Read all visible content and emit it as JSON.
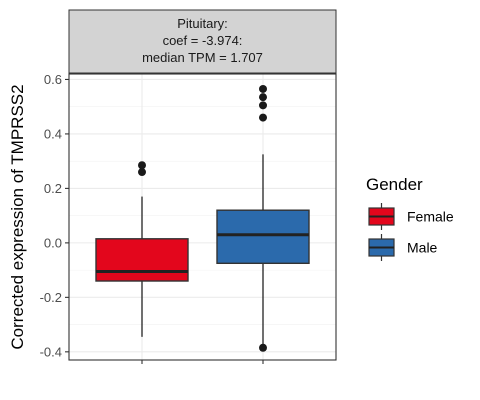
{
  "chart_data": {
    "type": "boxplot",
    "facet": {
      "title_lines": [
        "Pituitary:",
        "coef = -3.974:",
        "median TPM = 1.707"
      ]
    },
    "ylabel": "Corrected expression of TMPRSS2",
    "xlabel": "",
    "ylim": [
      -0.43,
      0.62
    ],
    "yticks": [
      -0.4,
      -0.2,
      0.0,
      0.2,
      0.4,
      0.6
    ],
    "ytick_labels": [
      "-0.4",
      "-0.2",
      "0.0",
      "0.2",
      "0.4",
      "0.6"
    ],
    "grid": true,
    "legend": {
      "title": "Gender",
      "position": "right"
    },
    "series": [
      {
        "name": "Female",
        "color": "#e3061c",
        "q1": -0.14,
        "median": -0.105,
        "q3": 0.015,
        "whisker_low": -0.345,
        "whisker_high": 0.17,
        "outliers": [
          0.285,
          0.26
        ]
      },
      {
        "name": "Male",
        "color": "#2b6aac",
        "q1": -0.075,
        "median": 0.03,
        "q3": 0.12,
        "whisker_low": -0.38,
        "whisker_high": 0.325,
        "outliers": [
          0.565,
          0.535,
          0.505,
          0.46,
          -0.385
        ]
      }
    ]
  }
}
